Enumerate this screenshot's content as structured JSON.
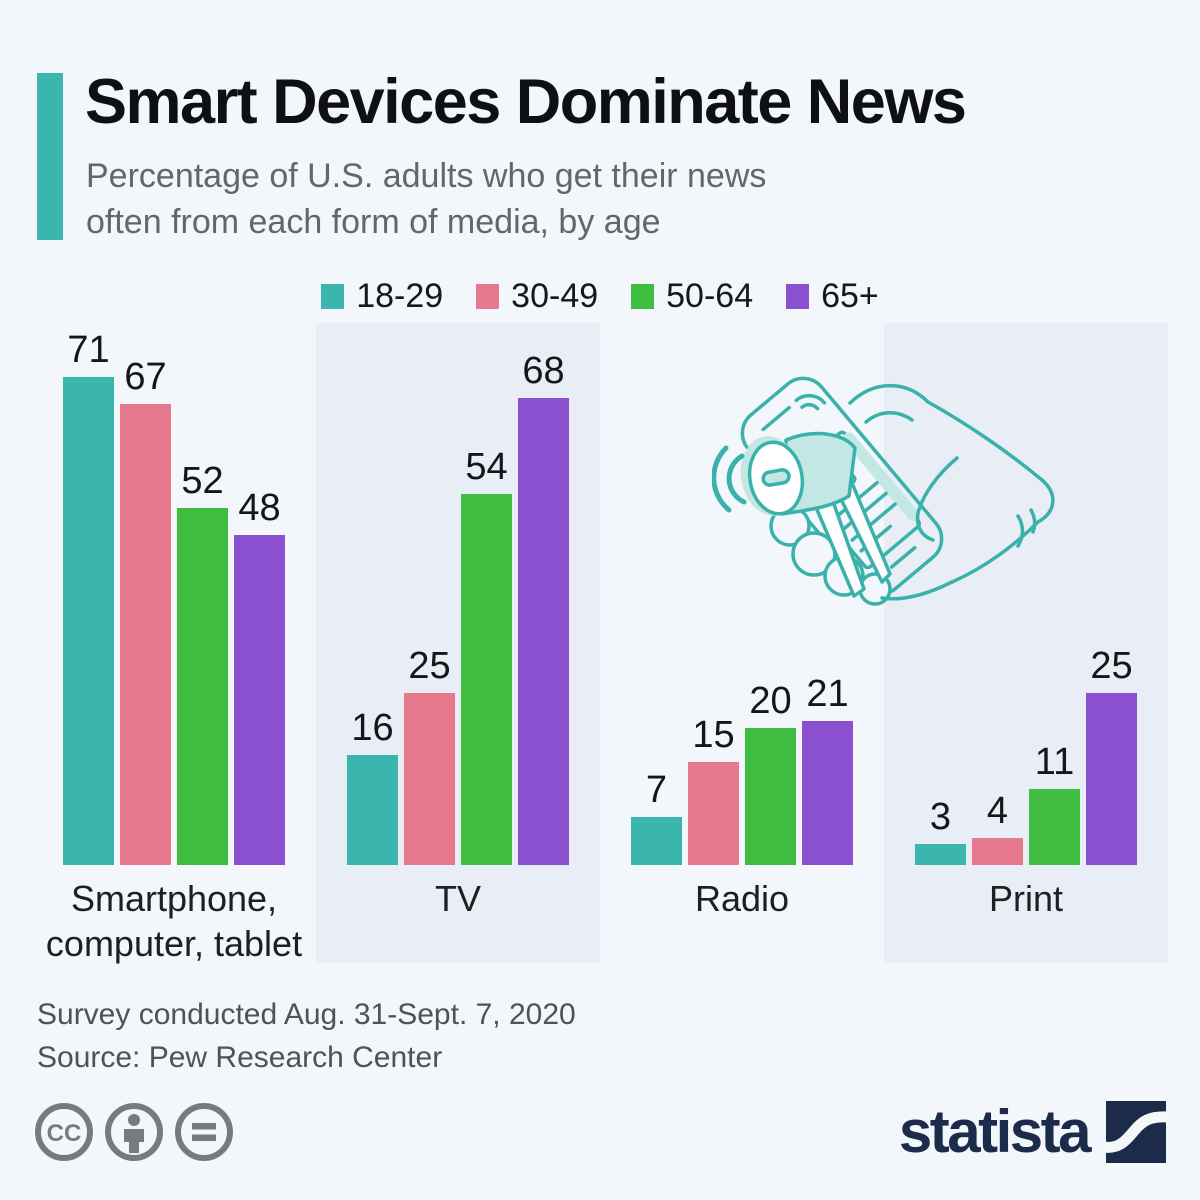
{
  "header": {
    "title": "Smart Devices Dominate News",
    "subtitle_line1": "Percentage of U.S. adults who get their news",
    "subtitle_line2": "often from each form of media, by age",
    "accent_color": "#3bb6af"
  },
  "legend": {
    "items": [
      {
        "label": "18-29",
        "color": "#3bb6af"
      },
      {
        "label": "30-49",
        "color": "#e7798e"
      },
      {
        "label": "50-64",
        "color": "#3ebd40"
      },
      {
        "label": "65+",
        "color": "#8a50d0"
      }
    ]
  },
  "chart_data": {
    "type": "bar",
    "title": "Smart Devices Dominate News",
    "subtitle": "Percentage of U.S. adults who get their news often from each form of media, by age",
    "categories": [
      "Smartphone, computer, tablet",
      "TV",
      "Radio",
      "Print"
    ],
    "categories_display": [
      [
        "Smartphone,",
        "computer, tablet"
      ],
      [
        "TV"
      ],
      [
        "Radio"
      ],
      [
        "Print"
      ]
    ],
    "series": [
      {
        "name": "18-29",
        "color": "#3bb6af",
        "values": [
          71,
          16,
          7,
          3
        ]
      },
      {
        "name": "30-49",
        "color": "#e7798e",
        "values": [
          67,
          25,
          15,
          4
        ]
      },
      {
        "name": "50-64",
        "color": "#3ebd40",
        "values": [
          52,
          54,
          20,
          11
        ]
      },
      {
        "name": "65+",
        "color": "#8a50d0",
        "values": [
          48,
          68,
          21,
          25
        ]
      }
    ],
    "ylim": [
      0,
      71
    ],
    "value_labels": true,
    "grid": false,
    "legend_position": "top",
    "highlighted_band_columns": [
      1,
      3
    ],
    "band_color": "#e9edf5"
  },
  "illustration": {
    "name": "hand-holding-smartphone-with-megaphone",
    "stroke_color": "#3ab1aa",
    "fill_color": "#c3e8e4"
  },
  "footer": {
    "survey_note": "Survey conducted Aug. 31-Sept. 7, 2020",
    "source": "Source: Pew Research Center"
  },
  "branding": {
    "logo_text": "statista",
    "logo_color": "#1b2b49",
    "license_icons": [
      "cc-icon",
      "attribution-icon",
      "nd-icon"
    ],
    "icon_color": "#777b7e"
  }
}
